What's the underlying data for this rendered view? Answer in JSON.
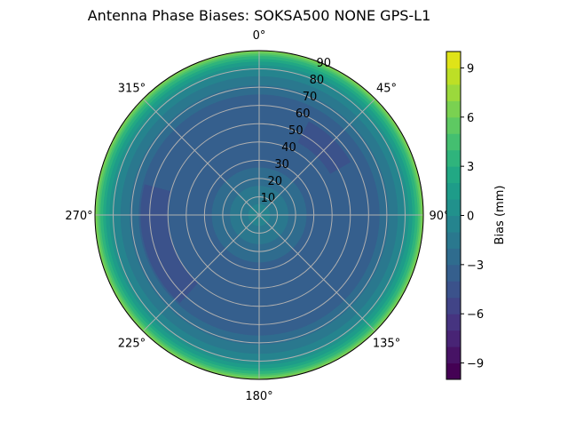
{
  "chart_data": {
    "type": "polar-contour",
    "title": "Antenna Phase Biases: SOKSA500        NONE GPS-L1",
    "angle_ticks": [
      {
        "deg": 0,
        "label": "0°"
      },
      {
        "deg": 45,
        "label": "45°"
      },
      {
        "deg": 90,
        "label": "90°"
      },
      {
        "deg": 135,
        "label": "135°"
      },
      {
        "deg": 180,
        "label": "180°"
      },
      {
        "deg": 225,
        "label": "225°"
      },
      {
        "deg": 270,
        "label": "270°"
      },
      {
        "deg": 315,
        "label": "315°"
      }
    ],
    "radial_ticks": [
      "10",
      "20",
      "30",
      "40",
      "50",
      "60",
      "70",
      "80",
      "90"
    ],
    "radial_range": [
      0,
      90
    ],
    "angle_direction": "clockwise",
    "angle_zero": "top",
    "grid": true,
    "colormap": "viridis",
    "colorbar": {
      "label": "Bias (mm)",
      "range": [
        -10,
        10
      ],
      "ticks": [
        "9",
        "6",
        "3",
        "0",
        "−3",
        "−6",
        "−9"
      ],
      "tick_values": [
        9,
        6,
        3,
        0,
        -3,
        -6,
        -9
      ],
      "levels_step": 1
    },
    "radial_profile": [
      {
        "zenith": 90,
        "bias": 7
      },
      {
        "zenith": 89,
        "bias": 6
      },
      {
        "zenith": 88,
        "bias": 5
      },
      {
        "zenith": 87,
        "bias": 4
      },
      {
        "zenith": 85.5,
        "bias": 3
      },
      {
        "zenith": 84,
        "bias": 2
      },
      {
        "zenith": 82,
        "bias": 1
      },
      {
        "zenith": 80,
        "bias": 0
      },
      {
        "zenith": 76,
        "bias": -1
      },
      {
        "zenith": 71,
        "bias": -2
      },
      {
        "zenith": 66,
        "bias": -3
      },
      {
        "zenith": 26,
        "bias": -2
      },
      {
        "zenith": 16,
        "bias": -1
      },
      {
        "zenith": 6,
        "bias": 0
      }
    ],
    "local_minima": [
      {
        "azimuth_range": [
          28,
          60
        ],
        "zenith_range": [
          45,
          58
        ],
        "bias": -4
      },
      {
        "azimuth_range": [
          222,
          285
        ],
        "zenith_range": [
          50,
          65
        ],
        "bias": -4
      }
    ]
  }
}
